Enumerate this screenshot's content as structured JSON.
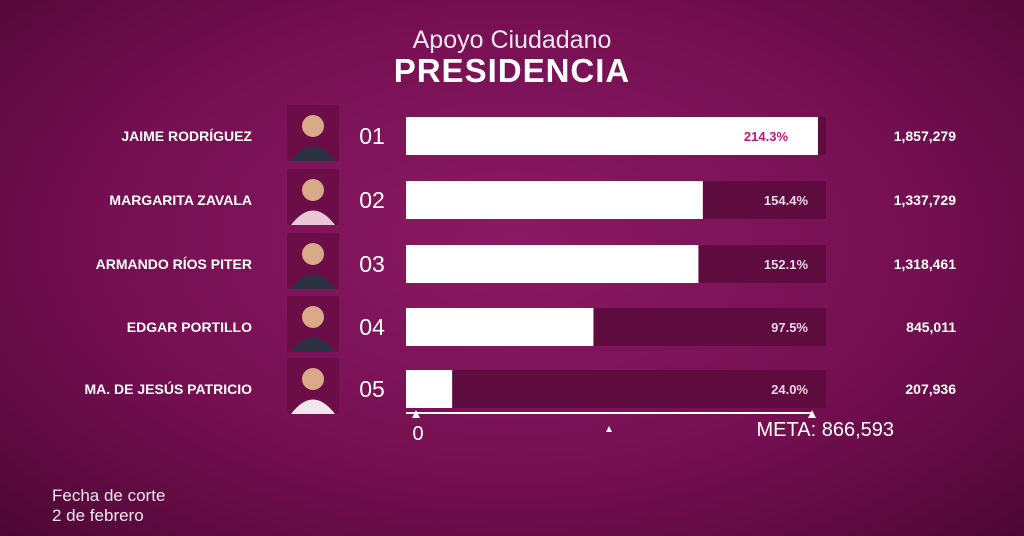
{
  "header": {
    "title": "Apoyo Ciudadano",
    "subtitle": "PRESIDENCIA"
  },
  "chart_data": {
    "type": "bar",
    "orientation": "horizontal",
    "title": "Apoyo Ciudadano",
    "subtitle": "PRESIDENCIA",
    "goal_label": "META: 866,593",
    "goal_value": 866593,
    "axis_start_label": "0",
    "xlim": [
      0,
      866593
    ],
    "grid": false,
    "categories": [
      "JAIME RODRÍGUEZ",
      "MARGARITA ZAVALA",
      "ARMANDO RÍOS PITER",
      "EDGAR PORTILLO",
      "MA. DE JESÚS PATRICIO"
    ],
    "ranks": [
      "01",
      "02",
      "03",
      "04",
      "05"
    ],
    "values": [
      1857279,
      1337729,
      1318461,
      845011,
      207936
    ],
    "value_labels": [
      "1,857,279",
      "1,337,729",
      "1,318,461",
      "845,011",
      "207,936"
    ],
    "percent_labels": [
      "214.3%",
      "154.4%",
      "152.1%",
      "97.5%",
      "24.0%"
    ],
    "percent_of_goal": [
      214.3,
      154.4,
      152.1,
      97.5,
      24.0
    ],
    "colors": {
      "bar_fill": "#ffffff",
      "bar_track": "#5e0b40",
      "percent_on_bar": "#c0187a",
      "percent_off_bar": "#ead7e2"
    }
  },
  "footer": {
    "line1": "Fecha de corte",
    "line2": "2 de febrero"
  }
}
